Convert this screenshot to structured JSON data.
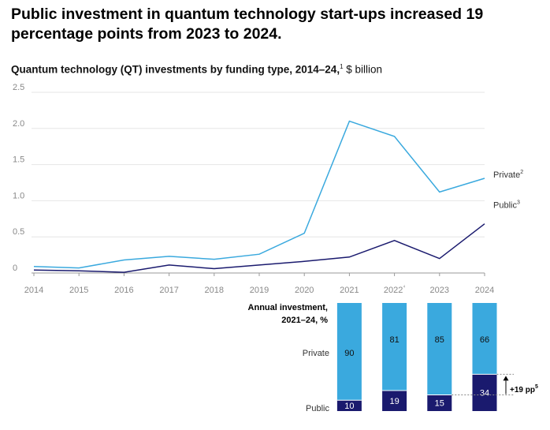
{
  "headline": "Public investment in quantum technology start-ups increased 19 percentage points from 2023 to 2024.",
  "subtitle": {
    "bold": "Quantum technology (QT) investments by funding type, 2014–24,",
    "sup": "1",
    "unit": " $ billion"
  },
  "colors": {
    "private": "#3aa9de",
    "public": "#1a1a6e",
    "grid": "#e6e6e6",
    "axis": "#999999"
  },
  "chart_data": [
    {
      "type": "line",
      "title": "Quantum technology (QT) investments by funding type, 2014–24, $ billion",
      "x": [
        "2014",
        "2015",
        "2016",
        "2017",
        "2018",
        "2019",
        "2020",
        "2021",
        "2022",
        "2023",
        "2024"
      ],
      "x_tick_labels": [
        "2014",
        "2015",
        "2016",
        "2017",
        "2018",
        "2019",
        "2020",
        "2021",
        "2022⁴",
        "2023",
        "2024"
      ],
      "y_ticks": [
        "0",
        "0.5",
        "1.0",
        "1.5",
        "2.0",
        "2.5"
      ],
      "ylim": [
        0,
        2.5
      ],
      "grid": true,
      "series": [
        {
          "name": "Private²",
          "color": "#3aa9de",
          "values": [
            0.09,
            0.07,
            0.18,
            0.23,
            0.19,
            0.26,
            0.55,
            2.1,
            1.89,
            1.12,
            1.31
          ]
        },
        {
          "name": "Public³",
          "color": "#1a1a6e",
          "values": [
            0.04,
            0.03,
            0.01,
            0.11,
            0.06,
            0.11,
            0.16,
            0.22,
            0.45,
            0.2,
            0.68
          ]
        }
      ]
    },
    {
      "type": "bar",
      "stacked": true,
      "title": "Annual investment, 2021–24, %",
      "title_lines": [
        "Annual investment,",
        "2021–24, %"
      ],
      "categories": [
        "2021",
        "2022",
        "2023",
        "2024"
      ],
      "series": [
        {
          "name": "Private",
          "color": "#3aa9de",
          "values": [
            90,
            81,
            85,
            66
          ]
        },
        {
          "name": "Public",
          "color": "#1a1a6e",
          "values": [
            10,
            19,
            15,
            34
          ]
        }
      ],
      "annotation": "+19 pp⁵"
    }
  ]
}
